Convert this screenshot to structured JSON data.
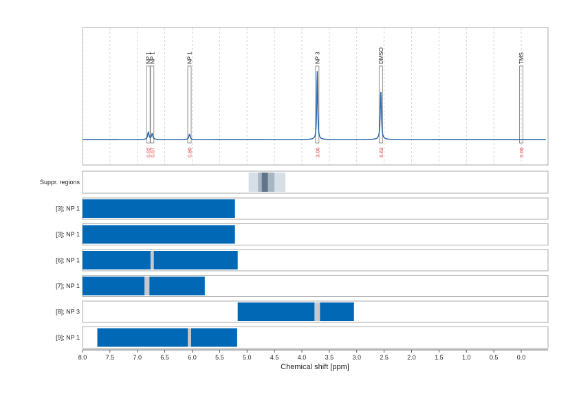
{
  "chart_data": {
    "type": "line",
    "xlabel": "Chemical shift [ppm]",
    "xlim": [
      8.0,
      -0.45
    ],
    "x_axis_reversed": true,
    "x_ticks": [
      "8.0",
      "7.5",
      "7.0",
      "6.5",
      "6.0",
      "5.5",
      "5.0",
      "4.5",
      "4.0",
      "3.5",
      "3.0",
      "2.5",
      "2.0",
      "1.5",
      "1.0",
      "0.5",
      "0.0"
    ],
    "grid": "vertical dashed",
    "colors": {
      "spectrum": "#1f5fa8",
      "bar": "#0068b4",
      "suppr_light": "#d6dee6",
      "suppr_mid": "#a9b6c2",
      "suppr_dark": "#5e7687",
      "integral_label": "#e03030",
      "panel_border": "#aaaaaa",
      "grid": "#c8c8c8"
    },
    "spectrum_peaks": [
      {
        "label": "NP 1",
        "ppm": 6.8,
        "integral": "0.92",
        "height": 0.1,
        "width": 0.03
      },
      {
        "label": "NP 1",
        "ppm": 6.73,
        "integral": "0.97",
        "height": 0.08,
        "width": 0.03
      },
      {
        "label": "NP 1",
        "ppm": 6.05,
        "integral": "0.80",
        "height": 0.07,
        "width": 0.03
      },
      {
        "label": "NP 3",
        "ppm": 3.72,
        "integral": "3.00",
        "height": 0.95,
        "width": 0.02
      },
      {
        "label": "DMSO",
        "ppm": 2.56,
        "integral": "6.63",
        "height": 0.67,
        "width": 0.025
      },
      {
        "label": "TMS",
        "ppm": 0.0,
        "integral": "0.00",
        "height": 0.0,
        "width": 0.02
      }
    ],
    "suppression_regions": {
      "label": "Suppr. regions",
      "light": [
        4.97,
        4.3
      ],
      "mid": [
        4.8,
        4.5
      ],
      "dark": [
        4.73,
        4.62
      ]
    },
    "rows": [
      {
        "label": "[3]; NP 1",
        "segments": [
          [
            8.0,
            5.22
          ]
        ],
        "gaps": []
      },
      {
        "label": "[3]; NP 1",
        "segments": [
          [
            8.0,
            5.22
          ]
        ],
        "gaps": []
      },
      {
        "label": "[6]; NP 1",
        "segments": [
          [
            8.0,
            6.76
          ],
          [
            6.7,
            5.17
          ]
        ],
        "gaps": [
          [
            6.76,
            6.7
          ]
        ]
      },
      {
        "label": "[7]; NP 1",
        "segments": [
          [
            8.0,
            6.87
          ],
          [
            6.78,
            5.77
          ]
        ],
        "gaps": [
          [
            6.87,
            6.78
          ]
        ]
      },
      {
        "label": "[8]; NP 3",
        "segments": [
          [
            5.17,
            3.77
          ],
          [
            3.67,
            3.05
          ]
        ],
        "gaps": [
          [
            3.77,
            3.67
          ]
        ]
      },
      {
        "label": "[9]; NP 1",
        "segments": [
          [
            7.73,
            6.08
          ],
          [
            6.02,
            5.18
          ]
        ],
        "gaps": [
          [
            6.08,
            6.02
          ]
        ]
      }
    ]
  }
}
